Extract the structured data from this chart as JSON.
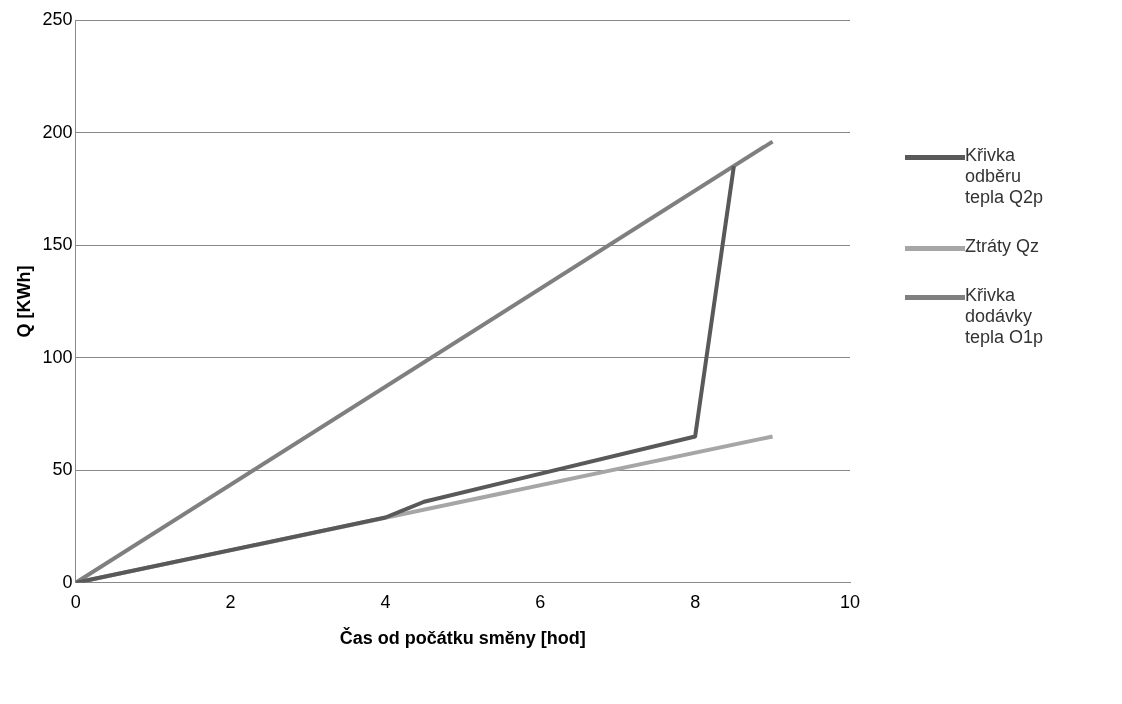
{
  "chart_data": {
    "type": "line",
    "xlabel": "Čas od počátku směny [hod]",
    "ylabel": "Q [KWh]",
    "xlim": [
      0,
      10
    ],
    "xticks": [
      0,
      2,
      4,
      6,
      8,
      10
    ],
    "ylim": [
      0,
      250
    ],
    "yticks": [
      0,
      50,
      100,
      150,
      200,
      250
    ],
    "grid": "y",
    "legend": "right",
    "marker": "none",
    "line_style": "solid",
    "series": [
      {
        "name": "Křivka odběru tepla Q2p",
        "color": "#595959",
        "x": [
          0,
          4,
          4.5,
          8,
          8.5
        ],
        "values": [
          0,
          29,
          36,
          65,
          185
        ]
      },
      {
        "name": "Ztráty Qz",
        "color": "#a6a6a6",
        "x": [
          0,
          9
        ],
        "values": [
          0,
          65
        ]
      },
      {
        "name": "Křivka dodávky tepla O1p",
        "color": "#7f7f7f",
        "x": [
          0,
          9
        ],
        "values": [
          0,
          196
        ]
      }
    ]
  }
}
